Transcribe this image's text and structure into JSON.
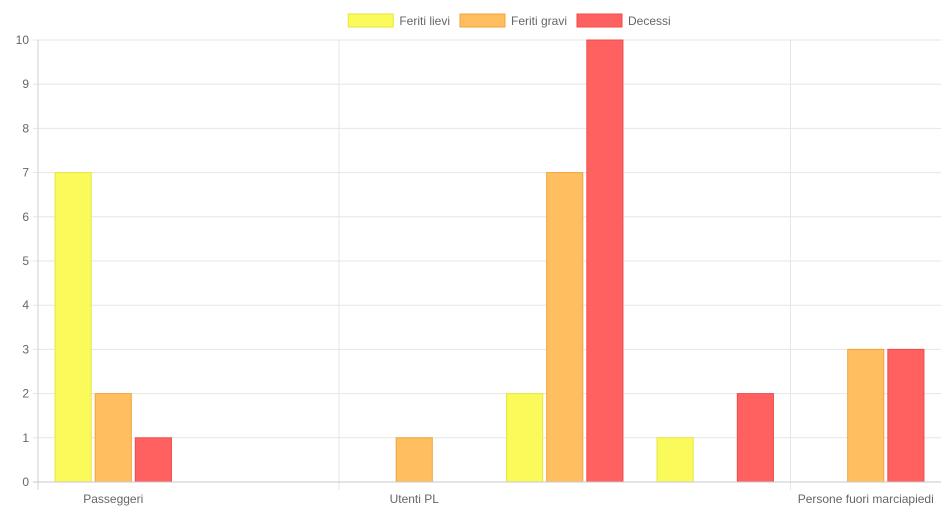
{
  "chart_data": {
    "type": "bar",
    "categories": [
      "Passeggeri",
      "",
      "Utenti PL",
      "",
      "",
      "Persone fuori marciapiedi"
    ],
    "series": [
      {
        "name": "Feriti lievi",
        "values": [
          7,
          0,
          0,
          2,
          1,
          0
        ],
        "color": "#fafa5a",
        "border": "#e6e640"
      },
      {
        "name": "Feriti gravi",
        "values": [
          2,
          0,
          1,
          7,
          0,
          3
        ],
        "color": "#ffbf60",
        "border": "#f2a23a"
      },
      {
        "name": "Decessi",
        "values": [
          1,
          0,
          0,
          10,
          2,
          3
        ],
        "color": "#ff6161",
        "border": "#f04a4a"
      }
    ],
    "ylim": [
      0,
      10
    ],
    "yticks": [
      "0",
      "1",
      "2",
      "3",
      "4",
      "5",
      "6",
      "7",
      "8",
      "9",
      "10"
    ],
    "grid": true,
    "legend_position": "top-center"
  }
}
